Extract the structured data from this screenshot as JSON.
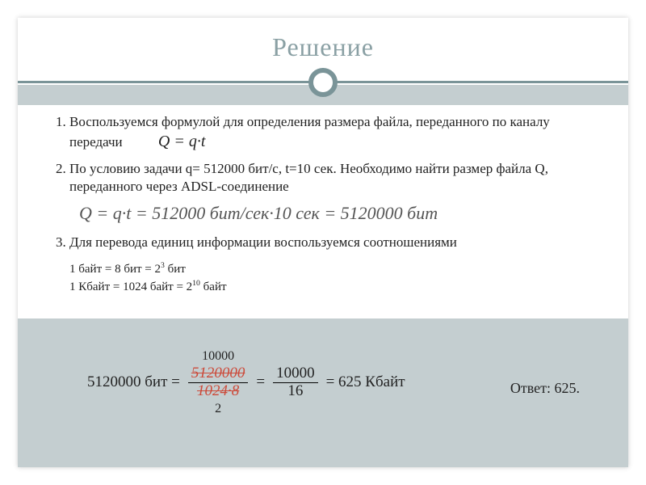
{
  "title": "Решение",
  "items": {
    "i1": "Воспользуемся формулой для определения размера файла, переданного по каналу передачи",
    "formula_inline": "Q = q·t",
    "i2": "По условию задачи q= 512000 бит/с, t=10 сек. Необходимо найти размер файла Q, переданного через ADSL-соединение",
    "block_formula": "Q = q·t = 512000 бит/сек·10 сек = 5120000 бит",
    "i3_under": "Для перевода единиц информации воспользуемся соотношениями",
    "small1_a": "1 байт = 8 бит = 2",
    "small1_exp": "3",
    "small1_b": " бит",
    "small2_a": "1 Кбайт = 1024 байт = 2",
    "small2_exp": "10",
    "small2_b": " байт"
  },
  "calc": {
    "lead": "5120000 бит =",
    "f1_num": "5120000",
    "f1_num_anno": "10000",
    "f1_den": "1024·8",
    "f1_den_anno": "2",
    "eq": "=",
    "f2_num": "10000",
    "f2_den": "16",
    "result": "= 625  Кбайт"
  },
  "answer_label": "Ответ: 625.",
  "colors": {
    "slide_bg": "#c4ced0",
    "accent": "#7a9498",
    "title_color": "#8aa0a4",
    "strike": "#cc4a3a"
  }
}
